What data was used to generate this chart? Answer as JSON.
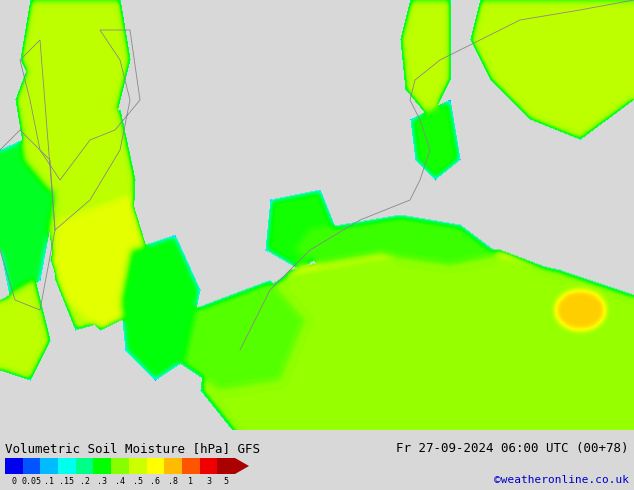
{
  "title_left": "Volumetric Soil Moisture [hPa] GFS",
  "title_right": "Fr 27-09-2024 06:00 UTC (00+78)",
  "credit": "©weatheronline.co.uk",
  "colorbar_tick_labels": [
    "0",
    "0.05",
    ".1",
    ".15",
    ".2",
    ".3",
    ".4",
    ".5",
    ".6",
    ".8",
    "1",
    "3",
    "5"
  ],
  "colorbar_colors": [
    "#0000EE",
    "#0055FF",
    "#00BBFF",
    "#00FFEE",
    "#00FF88",
    "#00FF00",
    "#88FF00",
    "#CCFF00",
    "#FFFF00",
    "#FFBB00",
    "#FF5500",
    "#EE0000",
    "#AA0000"
  ],
  "bg_color": "#d8d8d8",
  "map_bg": "#d0d0d0",
  "credit_color": "#0000CC",
  "figsize": [
    6.34,
    4.9
  ],
  "dpi": 100,
  "land_color": "#d0d0d0",
  "sea_color": "#d8d8d8"
}
